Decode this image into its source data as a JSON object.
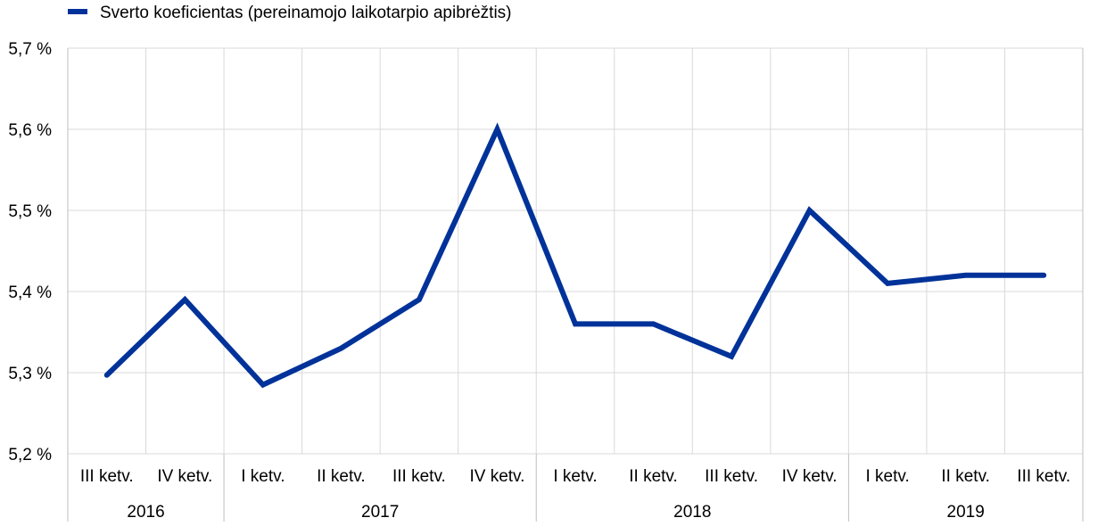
{
  "chart_data": {
    "type": "line",
    "legend": {
      "position": "top-left"
    },
    "series": [
      {
        "name": "Sverto koeficientas (pereinamojo laikotarpio apibrėžtis)",
        "color": "#003299",
        "values": [
          5.297,
          5.39,
          5.285,
          5.33,
          5.39,
          5.6,
          5.36,
          5.36,
          5.32,
          5.5,
          5.41,
          5.42,
          5.42
        ]
      }
    ],
    "categories": [
      "III ketv.",
      "IV ketv.",
      "I ketv.",
      "II ketv.",
      "III ketv.",
      "IV ketv.",
      "I ketv.",
      "II ketv.",
      "III ketv.",
      "IV ketv.",
      "I ketv.",
      "II ketv.",
      "III ketv."
    ],
    "year_groups": [
      {
        "label": "2016",
        "span": 2
      },
      {
        "label": "2017",
        "span": 4
      },
      {
        "label": "2018",
        "span": 4
      },
      {
        "label": "2019",
        "span": 3
      }
    ],
    "ylim": [
      5.2,
      5.7
    ],
    "yticks": [
      5.2,
      5.3,
      5.4,
      5.5,
      5.6,
      5.7
    ],
    "ytick_labels": [
      "5,2 %",
      "5,3 %",
      "5,4 %",
      "5,5 %",
      "5,6 %",
      "5,7 %"
    ],
    "grid": true,
    "colors": {
      "grid": "#d9d9d9",
      "axis": "#bfbfbf"
    }
  }
}
